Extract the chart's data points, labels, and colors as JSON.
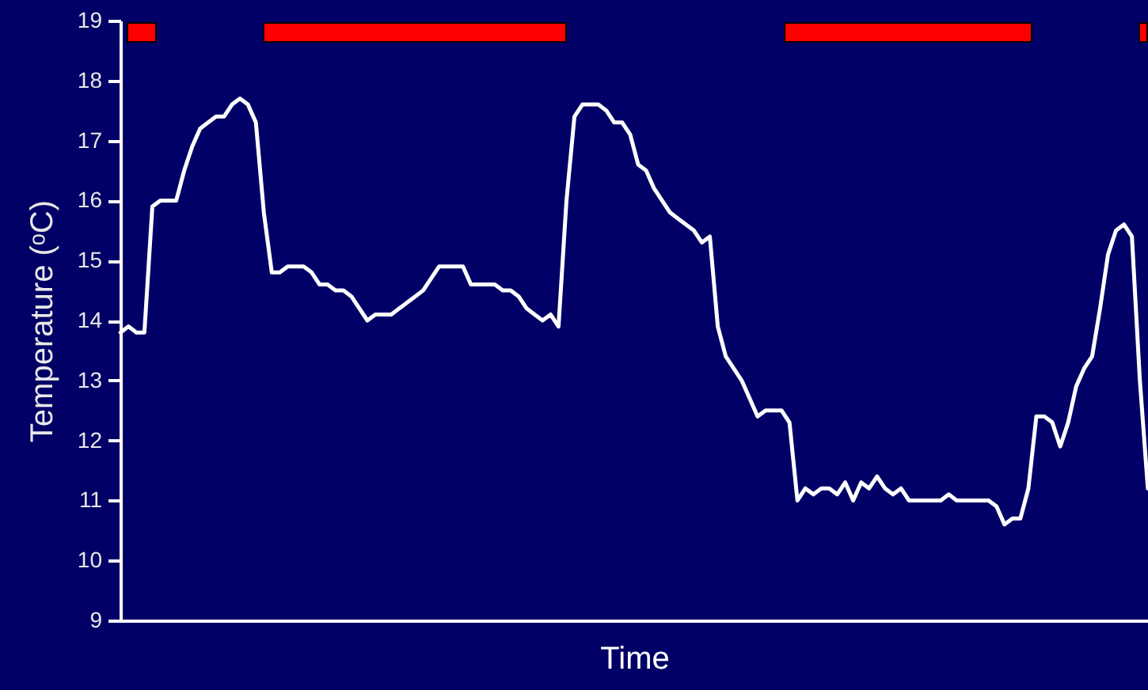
{
  "chart_data": {
    "type": "line",
    "xlabel": "Time",
    "ylabel": "Temperature (ᵒC)",
    "categories": [
      null,
      null,
      null,
      null,
      null,
      null,
      null,
      null,
      null,
      null,
      null,
      null,
      null,
      null,
      null,
      null,
      null,
      null,
      null,
      null,
      null,
      null,
      null,
      null,
      null,
      null,
      null,
      null,
      null,
      null,
      null,
      null,
      null,
      null,
      null,
      null,
      null,
      null,
      null,
      null,
      null,
      null,
      null,
      null,
      null,
      null,
      null,
      null,
      null,
      null,
      null,
      null,
      null,
      null,
      null,
      null,
      null,
      null,
      null,
      null,
      null,
      null,
      null,
      null,
      null,
      null,
      null,
      null,
      null,
      null,
      null,
      null,
      null,
      null,
      null,
      null,
      null,
      null,
      null,
      null,
      null,
      null,
      null,
      null,
      null,
      null,
      null,
      null,
      null,
      null,
      null,
      null,
      null,
      null,
      null,
      null,
      null,
      null,
      null,
      null,
      null,
      null,
      null,
      null,
      null,
      null,
      null,
      null,
      null,
      null,
      null,
      null,
      null,
      null,
      null,
      null,
      null,
      null,
      null,
      null,
      null,
      null,
      null,
      null,
      null,
      null,
      null,
      null,
      null,
      null
    ],
    "series": [
      {
        "color": "#ffffff",
        "values": [
          13.8,
          13.9,
          13.8,
          13.8,
          15.9,
          16.0,
          16.0,
          16.0,
          16.5,
          16.9,
          17.2,
          17.3,
          17.4,
          17.4,
          17.6,
          17.7,
          17.6,
          17.3,
          15.8,
          14.8,
          14.8,
          14.9,
          14.9,
          14.9,
          14.8,
          14.6,
          14.6,
          14.5,
          14.5,
          14.4,
          14.2,
          14.0,
          14.1,
          14.1,
          14.1,
          14.2,
          14.3,
          14.4,
          14.5,
          14.7,
          14.9,
          14.9,
          14.9,
          14.9,
          14.6,
          14.6,
          14.6,
          14.6,
          14.5,
          14.5,
          14.4,
          14.2,
          14.1,
          14.0,
          14.1,
          13.9,
          16.0,
          17.4,
          17.6,
          17.6,
          17.6,
          17.5,
          17.3,
          17.3,
          17.1,
          16.6,
          16.5,
          16.2,
          16.0,
          15.8,
          15.7,
          15.6,
          15.5,
          15.3,
          15.4,
          13.9,
          13.4,
          13.2,
          13.0,
          12.7,
          12.4,
          12.5,
          12.5,
          12.5,
          12.3,
          11.0,
          11.2,
          11.1,
          11.2,
          11.2,
          11.1,
          11.3,
          11.0,
          11.3,
          11.2,
          11.4,
          11.2,
          11.1,
          11.2,
          11.0,
          11.0,
          11.0,
          11.0,
          11.0,
          11.1,
          11.0,
          11.0,
          11.0,
          11.0,
          11.0,
          10.9,
          10.6,
          10.7,
          10.7,
          11.2,
          12.4,
          12.4,
          12.3,
          11.9,
          12.3,
          12.9,
          13.2,
          13.4,
          14.2,
          15.1,
          15.5,
          15.6,
          15.4,
          13.0,
          11.2
        ]
      }
    ],
    "ylim": [
      9,
      19
    ],
    "yticks": [
      9,
      10,
      11,
      12,
      13,
      14,
      15,
      16,
      17,
      18,
      19
    ],
    "tick_labels": "y",
    "marker": "none",
    "line_style": "solid"
  }
}
